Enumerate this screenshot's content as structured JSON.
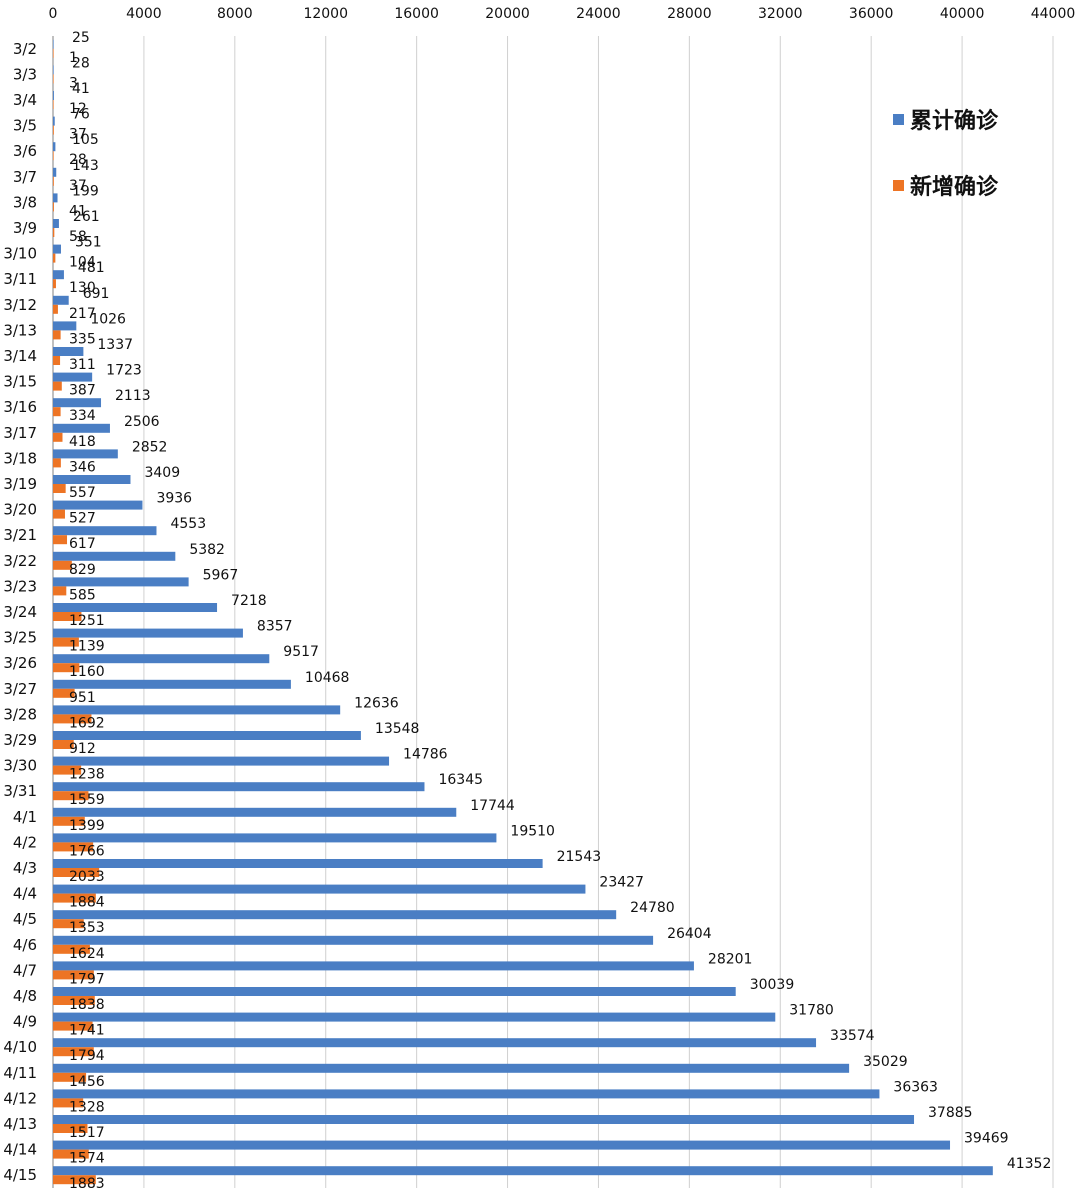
{
  "chart_data": {
    "type": "bar",
    "orientation": "horizontal",
    "title": "",
    "xlabel": "",
    "ylabel": "",
    "xlim": [
      0,
      44000
    ],
    "x_ticks": [
      0,
      4000,
      8000,
      12000,
      16000,
      20000,
      24000,
      28000,
      32000,
      36000,
      40000,
      44000
    ],
    "x_axis_position": "top",
    "grid": "vertical",
    "legend_position": "right",
    "categories": [
      "3/2",
      "3/3",
      "3/4",
      "3/5",
      "3/6",
      "3/7",
      "3/8",
      "3/9",
      "3/10",
      "3/11",
      "3/12",
      "3/13",
      "3/14",
      "3/15",
      "3/16",
      "3/17",
      "3/18",
      "3/19",
      "3/20",
      "3/21",
      "3/22",
      "3/23",
      "3/24",
      "3/25",
      "3/26",
      "3/27",
      "3/28",
      "3/29",
      "3/30",
      "3/31",
      "4/1",
      "4/2",
      "4/3",
      "4/4",
      "4/5",
      "4/6",
      "4/7",
      "4/8",
      "4/9",
      "4/10",
      "4/11",
      "4/12",
      "4/13",
      "4/14",
      "4/15"
    ],
    "series": [
      {
        "name": "累计确诊",
        "color": "#4A7EC4",
        "values": [
          25,
          28,
          41,
          76,
          105,
          143,
          199,
          261,
          351,
          481,
          691,
          1026,
          1337,
          1723,
          2113,
          2506,
          2852,
          3409,
          3936,
          4553,
          5382,
          5967,
          7218,
          8357,
          9517,
          10468,
          12636,
          13548,
          14786,
          16345,
          17744,
          19510,
          21543,
          23427,
          24780,
          26404,
          28201,
          30039,
          31780,
          33574,
          35029,
          36363,
          37885,
          39469,
          41352
        ]
      },
      {
        "name": "新增确诊",
        "color": "#ED7424",
        "values": [
          1,
          3,
          12,
          37,
          28,
          37,
          41,
          58,
          104,
          130,
          217,
          335,
          311,
          387,
          334,
          418,
          346,
          557,
          527,
          617,
          829,
          585,
          1251,
          1139,
          1160,
          951,
          1692,
          912,
          1238,
          1559,
          1399,
          1766,
          2033,
          1884,
          1353,
          1624,
          1797,
          1838,
          1741,
          1794,
          1456,
          1328,
          1517,
          1574,
          1883
        ]
      }
    ]
  }
}
